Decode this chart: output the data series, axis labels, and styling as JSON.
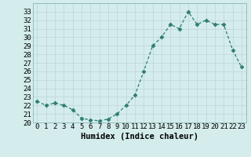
{
  "x": [
    0,
    1,
    2,
    3,
    4,
    5,
    6,
    7,
    8,
    9,
    10,
    11,
    12,
    13,
    14,
    15,
    16,
    17,
    18,
    19,
    20,
    21,
    22,
    23
  ],
  "y": [
    22.5,
    22.0,
    22.3,
    22.0,
    21.5,
    20.5,
    20.3,
    20.2,
    20.4,
    21.0,
    22.0,
    23.2,
    26.0,
    29.0,
    30.0,
    31.5,
    31.0,
    33.0,
    31.5,
    32.0,
    31.5,
    31.5,
    28.5,
    26.5
  ],
  "xlabel": "Humidex (Indice chaleur)",
  "ylim": [
    20,
    34
  ],
  "xlim": [
    -0.5,
    23.5
  ],
  "yticks": [
    20,
    21,
    22,
    23,
    24,
    25,
    26,
    27,
    28,
    29,
    30,
    31,
    32,
    33
  ],
  "xticks": [
    0,
    1,
    2,
    3,
    4,
    5,
    6,
    7,
    8,
    9,
    10,
    11,
    12,
    13,
    14,
    15,
    16,
    17,
    18,
    19,
    20,
    21,
    22,
    23
  ],
  "line_color": "#2d7d6e",
  "marker": "D",
  "marker_size": 2.5,
  "bg_color": "#d4ecec",
  "grid_color": "#c0d8d8",
  "xlabel_fontsize": 7.5,
  "tick_fontsize": 6.5
}
